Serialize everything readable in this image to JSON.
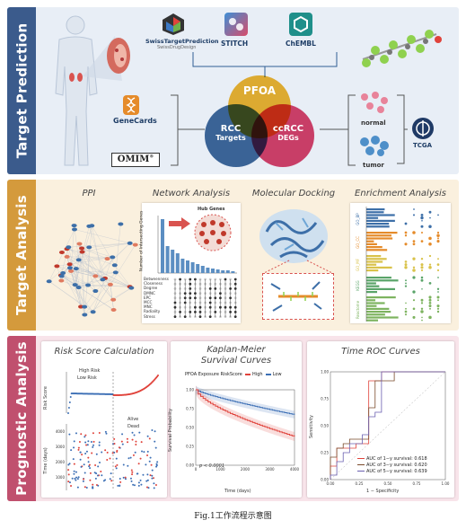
{
  "sections": {
    "target_prediction": "Target Prediction",
    "target_analysis": "Target Analysis",
    "prognostic_analysis": "Prognostic Analysis"
  },
  "databases": {
    "swiss_title": "SwissTargetPrediction",
    "swiss_sub": "SwissDrugDesign",
    "stitch": "STITCH",
    "chembl": "ChEMBL",
    "genecards": "GeneCards",
    "omim": "OMIM",
    "omim_reg": "®",
    "tcga": "TCGA"
  },
  "venn": {
    "pfoa": "PFOA",
    "rcc_line1": "RCC",
    "rcc_line2": "Targets",
    "ccrcc_line1": "ccRCC",
    "ccrcc_line2": "DEGs"
  },
  "samples": {
    "normal": "normal",
    "tumor": "tumor"
  },
  "analysis_cards": {
    "ppi": "PPI",
    "network": "Network Analysis",
    "docking": "Molecular Docking",
    "enrichment": "Enrichment Analysis"
  },
  "network_panel": {
    "hub_genes": "Hub Genes",
    "y_label": "Number of Intersecting Genes",
    "methods": [
      "Betweenness",
      "Closeness",
      "Degree",
      "DMNC",
      "EPC",
      "MCC",
      "MNC",
      "Radiality",
      "Stress"
    ]
  },
  "enrichment_panel": {
    "groups": [
      "GO_BP",
      "GO_CC",
      "GO_MF",
      "KEGG",
      "Reactome"
    ]
  },
  "prognostic_cards": {
    "risk": "Risk Score Calculation",
    "km_line1": "Kaplan-Meier",
    "km_line2": "Survival Curves",
    "roc": "Time ROC Curves"
  },
  "risk_panel": {
    "high_risk": "High Risk",
    "low_risk": "Low Risk",
    "y_label_top": "Risk Score",
    "y_label_bottom": "Time (days)",
    "alive": "Alive",
    "dead": "Dead",
    "y_ticks": [
      "4000",
      "3000",
      "2000",
      "1000"
    ]
  },
  "km_panel": {
    "legend_title": "PFOA Exposure RiskScore",
    "legend_high": "High",
    "legend_low": "Low",
    "y_label": "Survival Probability",
    "x_label": "Time (days)",
    "p_value": "p < 0.0001",
    "y_ticks": [
      "1.00",
      "0.75",
      "0.50",
      "0.25",
      "0.00"
    ],
    "x_ticks": [
      "0",
      "1000",
      "2000",
      "3000",
      "4000"
    ]
  },
  "roc_panel": {
    "y_label": "Sensitivity",
    "x_label": "1 − Specificity",
    "y_ticks": [
      "1.00",
      "0.75",
      "0.50",
      "0.25",
      "0.00"
    ],
    "x_ticks": [
      "0.00",
      "0.25",
      "0.50",
      "0.75",
      "1.00"
    ],
    "legend": [
      {
        "label": "AUC of 1−y survival: 0.618",
        "color": "#e0433b"
      },
      {
        "label": "AUC of 3−y survival: 0.620",
        "color": "#7a4a2a"
      },
      {
        "label": "AUC of 5−y survival: 0.639",
        "color": "#6a5fb0"
      }
    ]
  },
  "caption": "Fig.1工作流程示意图",
  "colors": {
    "prediction": "#3b5b8c",
    "analysis": "#d49a3c",
    "prognostic": "#c0506e",
    "venn_pfoa": "#f2b632",
    "venn_rcc": "#2f5d94",
    "venn_ccrcc": "#d9325e"
  }
}
